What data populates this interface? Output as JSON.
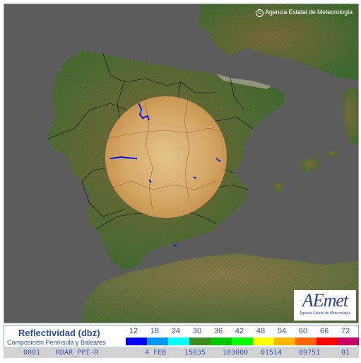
{
  "map": {
    "copyright": "Agencia Estatal de Meteorología",
    "logo_text": "AEmet",
    "logo_subtitle": "Agencia Estatal de Meteorología"
  },
  "legend": {
    "title": "Reflectividad (dbz)",
    "subtitle": "Composición Península y Baleares",
    "scale": [
      {
        "label": "12",
        "color": "#0000f5"
      },
      {
        "label": "18",
        "color": "#0096ff"
      },
      {
        "label": "24",
        "color": "#00ffff"
      },
      {
        "label": "30",
        "color": "#3c8c1e"
      },
      {
        "label": "36",
        "color": "#00c800"
      },
      {
        "label": "42",
        "color": "#00ff00"
      },
      {
        "label": "48",
        "color": "#ffff00"
      },
      {
        "label": "54",
        "color": "#ffb400"
      },
      {
        "label": "60",
        "color": "#ff6400"
      },
      {
        "label": "66",
        "color": "#ff0000"
      },
      {
        "label": "72",
        "color": "#c80064"
      }
    ]
  },
  "status": {
    "fields": [
      "0001",
      "RDAR_PPI-R",
      "4 FEB",
      "15035",
      "103000",
      "01514",
      "09751",
      "01"
    ]
  }
}
